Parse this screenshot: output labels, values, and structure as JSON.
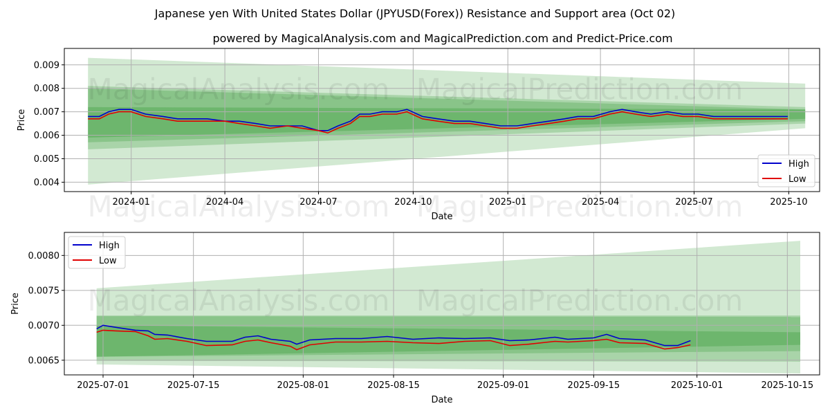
{
  "title": "Japanese yen With United States Dollar (JPYUSD(Forex)) Resistance and Support area (Oct 02)",
  "subtitle": "powered by MagicalAnalysis.com and MagicalPrediction.com and Predict-Price.com",
  "watermark": [
    "MagicalAnalysis.com",
    "MagicalPrediction.com"
  ],
  "colors": {
    "high": "#0000cc",
    "low": "#e00000",
    "band": "#4ca64c"
  },
  "chart_data": [
    {
      "type": "line",
      "xlabel": "Date",
      "ylabel": "Price",
      "ylim": [
        0.0036,
        0.0097
      ],
      "xlim": [
        "2023-10-28",
        "2025-10-31"
      ],
      "yticks": [
        "0.004",
        "0.005",
        "0.006",
        "0.007",
        "0.008",
        "0.009"
      ],
      "ytick_values": [
        0.004,
        0.005,
        0.006,
        0.007,
        0.008,
        0.009
      ],
      "xticks": [
        "2024-01",
        "2024-04",
        "2024-07",
        "2024-10",
        "2025-01",
        "2025-04",
        "2025-07",
        "2025-10"
      ],
      "xtick_dates": [
        "2024-01-01",
        "2024-04-01",
        "2024-07-01",
        "2024-10-01",
        "2025-01-01",
        "2025-04-01",
        "2025-07-01",
        "2025-10-01"
      ],
      "legend": {
        "position": "lower-right",
        "entries": [
          "High",
          "Low"
        ]
      },
      "grid": true,
      "bands_range": [
        "2023-11-20",
        "2025-10-17"
      ],
      "bands": [
        {
          "upper": [
            0.0093,
            0.0082
          ],
          "lower": [
            0.0039,
            0.0063
          ],
          "opacity": 0.25
        },
        {
          "upper": [
            0.0081,
            0.0072
          ],
          "lower": [
            0.0054,
            0.0065
          ],
          "opacity": 0.3
        },
        {
          "upper": [
            0.008,
            0.0071
          ],
          "lower": [
            0.0057,
            0.0066
          ],
          "opacity": 0.35
        },
        {
          "upper": [
            0.0072,
            0.0071
          ],
          "lower": [
            0.0059,
            0.0067
          ],
          "opacity": 0.45
        }
      ],
      "series": [
        {
          "name": "High",
          "x": [
            "2023-11-20",
            "2023-12-01",
            "2023-12-10",
            "2023-12-20",
            "2024-01-01",
            "2024-01-15",
            "2024-02-01",
            "2024-02-15",
            "2024-03-01",
            "2024-03-15",
            "2024-04-01",
            "2024-04-15",
            "2024-05-01",
            "2024-05-15",
            "2024-06-01",
            "2024-06-15",
            "2024-07-01",
            "2024-07-10",
            "2024-07-20",
            "2024-08-01",
            "2024-08-10",
            "2024-08-20",
            "2024-09-01",
            "2024-09-15",
            "2024-09-25",
            "2024-10-10",
            "2024-10-25",
            "2024-11-10",
            "2024-11-25",
            "2024-12-10",
            "2024-12-25",
            "2025-01-10",
            "2025-01-25",
            "2025-02-10",
            "2025-02-25",
            "2025-03-10",
            "2025-03-25",
            "2025-04-10",
            "2025-04-22",
            "2025-05-05",
            "2025-05-20",
            "2025-06-05",
            "2025-06-20",
            "2025-07-05",
            "2025-07-20",
            "2025-08-05",
            "2025-08-20",
            "2025-09-05",
            "2025-09-20",
            "2025-09-30"
          ],
          "values": [
            0.0068,
            0.0068,
            0.007,
            0.0071,
            0.0071,
            0.0069,
            0.0068,
            0.0067,
            0.0067,
            0.0067,
            0.0066,
            0.0066,
            0.0065,
            0.0064,
            0.0064,
            0.0064,
            0.0062,
            0.0062,
            0.0064,
            0.0066,
            0.0069,
            0.0069,
            0.007,
            0.007,
            0.0071,
            0.0068,
            0.0067,
            0.0066,
            0.0066,
            0.0065,
            0.0064,
            0.0064,
            0.0065,
            0.0066,
            0.0067,
            0.0068,
            0.0068,
            0.007,
            0.0071,
            0.007,
            0.0069,
            0.007,
            0.0069,
            0.0069,
            0.0068,
            0.0068,
            0.0068,
            0.0068,
            0.0068,
            0.0068
          ]
        },
        {
          "name": "Low",
          "x": [
            "2023-11-20",
            "2023-12-01",
            "2023-12-10",
            "2023-12-20",
            "2024-01-01",
            "2024-01-15",
            "2024-02-01",
            "2024-02-15",
            "2024-03-01",
            "2024-03-15",
            "2024-04-01",
            "2024-04-15",
            "2024-05-01",
            "2024-05-15",
            "2024-06-01",
            "2024-06-15",
            "2024-07-01",
            "2024-07-10",
            "2024-07-20",
            "2024-08-01",
            "2024-08-10",
            "2024-08-20",
            "2024-09-01",
            "2024-09-15",
            "2024-09-25",
            "2024-10-10",
            "2024-10-25",
            "2024-11-10",
            "2024-11-25",
            "2024-12-10",
            "2024-12-25",
            "2025-01-10",
            "2025-01-25",
            "2025-02-10",
            "2025-02-25",
            "2025-03-10",
            "2025-03-25",
            "2025-04-10",
            "2025-04-22",
            "2025-05-05",
            "2025-05-20",
            "2025-06-05",
            "2025-06-20",
            "2025-07-05",
            "2025-07-20",
            "2025-08-05",
            "2025-08-20",
            "2025-09-05",
            "2025-09-20",
            "2025-09-30"
          ],
          "values": [
            0.0067,
            0.0067,
            0.0069,
            0.007,
            0.007,
            0.0068,
            0.0067,
            0.0066,
            0.0066,
            0.0066,
            0.0066,
            0.0065,
            0.0064,
            0.0063,
            0.0064,
            0.0063,
            0.0062,
            0.0061,
            0.0063,
            0.0065,
            0.0068,
            0.0068,
            0.0069,
            0.0069,
            0.007,
            0.0067,
            0.0066,
            0.0065,
            0.0065,
            0.0064,
            0.0063,
            0.0063,
            0.0064,
            0.0065,
            0.0066,
            0.0067,
            0.0067,
            0.0069,
            0.007,
            0.0069,
            0.0068,
            0.0069,
            0.0068,
            0.0068,
            0.0067,
            0.0067,
            0.0067,
            0.0067,
            0.0067,
            0.0067
          ]
        }
      ]
    },
    {
      "type": "line",
      "xlabel": "Date",
      "ylabel": "Price",
      "ylim": [
        0.00629,
        0.00833
      ],
      "xlim": [
        "2025-06-25",
        "2025-10-20"
      ],
      "yticks": [
        "0.0065",
        "0.0070",
        "0.0075",
        "0.0080"
      ],
      "ytick_values": [
        0.0065,
        0.007,
        0.0075,
        0.008
      ],
      "xticks": [
        "2025-07-01",
        "2025-07-15",
        "2025-08-01",
        "2025-08-15",
        "2025-09-01",
        "2025-09-15",
        "2025-10-01",
        "2025-10-15"
      ],
      "xtick_dates": [
        "2025-07-01",
        "2025-07-15",
        "2025-08-01",
        "2025-08-15",
        "2025-09-01",
        "2025-09-15",
        "2025-10-01",
        "2025-10-15"
      ],
      "legend": {
        "position": "upper-left",
        "entries": [
          "High",
          "Low"
        ]
      },
      "grid": true,
      "bands_range": [
        "2025-06-30",
        "2025-10-17"
      ],
      "bands": [
        {
          "upper": [
            0.00753,
            0.00821
          ],
          "lower": [
            0.00644,
            0.00631
          ],
          "opacity": 0.25
        },
        {
          "upper": [
            0.00714,
            0.00714
          ],
          "lower": [
            0.00649,
            0.00648
          ],
          "opacity": 0.3
        },
        {
          "upper": [
            0.00713,
            0.00712
          ],
          "lower": [
            0.00655,
            0.00663
          ],
          "opacity": 0.35
        },
        {
          "upper": [
            0.007,
            0.0069
          ],
          "lower": [
            0.00655,
            0.00672
          ],
          "opacity": 0.45
        }
      ],
      "series": [
        {
          "name": "High",
          "x": [
            "2025-06-30",
            "2025-07-01",
            "2025-07-03",
            "2025-07-06",
            "2025-07-08",
            "2025-07-09",
            "2025-07-11",
            "2025-07-14",
            "2025-07-17",
            "2025-07-21",
            "2025-07-23",
            "2025-07-25",
            "2025-07-27",
            "2025-07-30",
            "2025-07-31",
            "2025-08-02",
            "2025-08-06",
            "2025-08-10",
            "2025-08-14",
            "2025-08-18",
            "2025-08-22",
            "2025-08-26",
            "2025-08-30",
            "2025-09-02",
            "2025-09-05",
            "2025-09-09",
            "2025-09-11",
            "2025-09-15",
            "2025-09-17",
            "2025-09-19",
            "2025-09-23",
            "2025-09-26",
            "2025-09-28",
            "2025-09-30"
          ],
          "values": [
            0.00695,
            0.007,
            0.00697,
            0.00693,
            0.00692,
            0.00687,
            0.00686,
            0.00681,
            0.00677,
            0.00677,
            0.00683,
            0.00685,
            0.0068,
            0.00677,
            0.00673,
            0.00679,
            0.00681,
            0.00681,
            0.00684,
            0.0068,
            0.00682,
            0.00681,
            0.00682,
            0.00678,
            0.00679,
            0.00683,
            0.0068,
            0.00682,
            0.00687,
            0.00681,
            0.00679,
            0.00671,
            0.00671,
            0.00678
          ]
        },
        {
          "name": "Low",
          "x": [
            "2025-06-30",
            "2025-07-01",
            "2025-07-03",
            "2025-07-06",
            "2025-07-08",
            "2025-07-09",
            "2025-07-11",
            "2025-07-14",
            "2025-07-17",
            "2025-07-21",
            "2025-07-23",
            "2025-07-25",
            "2025-07-27",
            "2025-07-30",
            "2025-07-31",
            "2025-08-02",
            "2025-08-06",
            "2025-08-10",
            "2025-08-14",
            "2025-08-18",
            "2025-08-22",
            "2025-08-26",
            "2025-08-30",
            "2025-09-02",
            "2025-09-05",
            "2025-09-09",
            "2025-09-11",
            "2025-09-15",
            "2025-09-17",
            "2025-09-19",
            "2025-09-23",
            "2025-09-26",
            "2025-09-28",
            "2025-09-30"
          ],
          "values": [
            0.0069,
            0.00693,
            0.00692,
            0.00691,
            0.00685,
            0.0068,
            0.00681,
            0.00677,
            0.00671,
            0.00672,
            0.00677,
            0.00679,
            0.00675,
            0.0067,
            0.00665,
            0.00672,
            0.00676,
            0.00676,
            0.00677,
            0.00675,
            0.00674,
            0.00677,
            0.00678,
            0.00671,
            0.00673,
            0.00677,
            0.00676,
            0.00678,
            0.0068,
            0.00675,
            0.00674,
            0.00666,
            0.00668,
            0.00672
          ]
        }
      ]
    }
  ]
}
